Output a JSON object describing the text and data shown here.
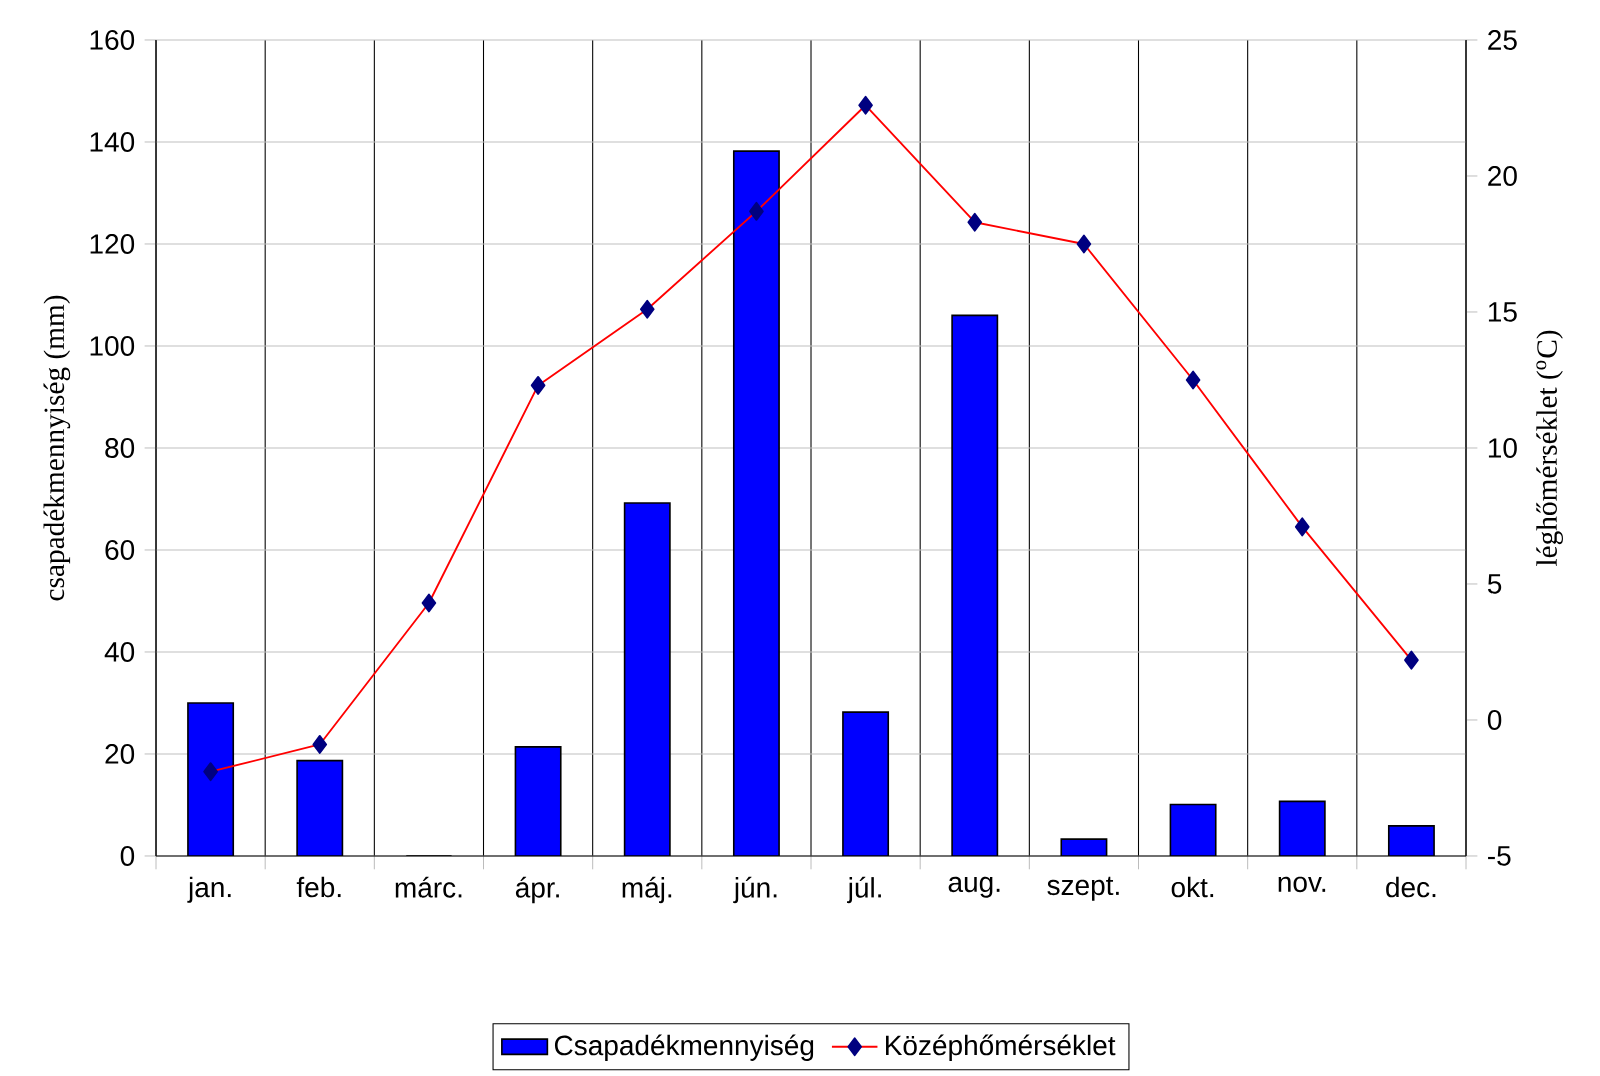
{
  "chart_data": {
    "type": "bar",
    "categories": [
      "jan.",
      "feb.",
      "márc.",
      "ápr.",
      "máj.",
      "jún.",
      "júl.",
      "aug.",
      "szept.",
      "okt.",
      "nov.",
      "dec."
    ],
    "ylabel": "csapadékmennyiség (mm)",
    "y2label": "léghőmérséklet ($^{o}$C)",
    "series": [
      {
        "name": "Csapadékmennyiség",
        "color": "#0000ff",
        "values": [
          30,
          18.7,
          0,
          21.4,
          69.2,
          138.2,
          28.2,
          106,
          3.3,
          10.1,
          10.7,
          5.9
        ]
      },
      {
        "name": "Középhőmérséklet",
        "type": "line",
        "axis": "y2",
        "color": "#ff0000",
        "marker": "diamond",
        "values": [
          -1.9,
          -0.9,
          4.3,
          12.3,
          15.1,
          18.7,
          22.6,
          18.3,
          17.5,
          12.5,
          7.1,
          2.2
        ]
      }
    ],
    "ylim": [
      0,
      160
    ],
    "yticks": [
      0,
      20,
      40,
      60,
      80,
      100,
      120,
      140,
      160
    ],
    "y2lim": [
      -5,
      25
    ],
    "y2ticks": [
      -5,
      0,
      5,
      10,
      15,
      20,
      25
    ],
    "grid": true,
    "legend": "bottom"
  }
}
